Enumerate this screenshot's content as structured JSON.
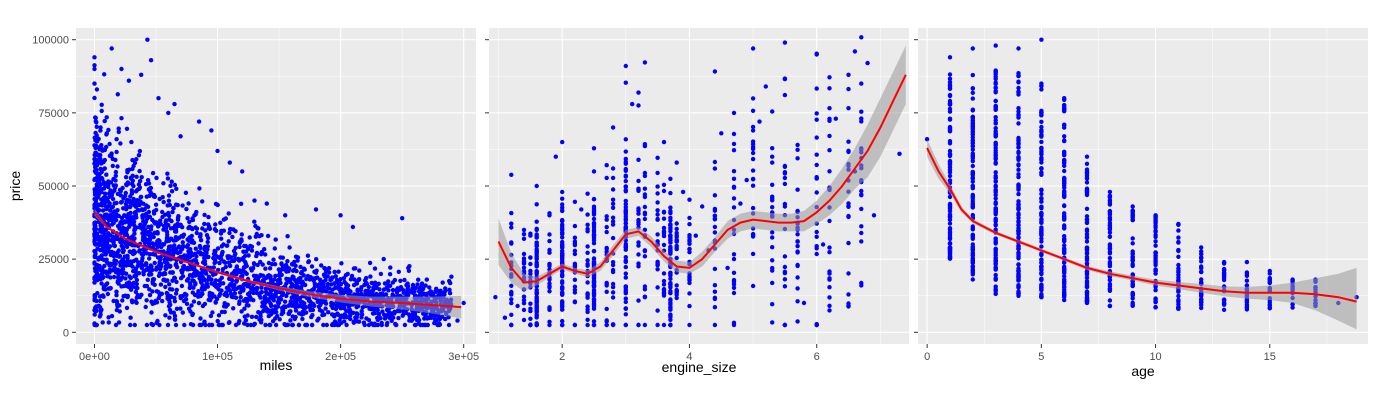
{
  "colors": {
    "panel_bg": "#ebebeb",
    "grid_major": "#ffffff",
    "point": "#0000ff",
    "smooth_line": "#ff0000",
    "ribbon": "#999999",
    "tick_text": "#4d4d4d",
    "axis_text": "#000000"
  },
  "chart_data": [
    {
      "type": "scatter",
      "xlabel": "miles",
      "ylabel": "price",
      "xlim": [
        -15000,
        310000
      ],
      "ylim": [
        -4000,
        104000
      ],
      "x_ticks": [
        0,
        100000,
        200000,
        300000
      ],
      "x_tick_labels": [
        "0e+00",
        "1e+05",
        "2e+05",
        "3e+05"
      ],
      "y_ticks": [
        0,
        25000,
        50000,
        75000,
        100000
      ],
      "y_tick_labels": [
        "0",
        "25000",
        "50000",
        "75000",
        "100000"
      ],
      "show_y_ticks": true,
      "grid": true,
      "smooth": {
        "x": [
          0,
          10000,
          25000,
          50000,
          75000,
          100000,
          125000,
          150000,
          175000,
          200000,
          225000,
          250000,
          275000,
          298000
        ],
        "y": [
          41000,
          36000,
          32000,
          27500,
          24000,
          20500,
          17500,
          15000,
          13000,
          11500,
          10500,
          10000,
          9300,
          8600
        ],
        "se_upper": [
          42200,
          36500,
          32300,
          27800,
          24300,
          20900,
          18000,
          15700,
          14000,
          12800,
          12200,
          12200,
          12200,
          12500
        ],
        "se_lower": [
          39800,
          35500,
          31700,
          27200,
          23700,
          20100,
          17000,
          14300,
          12000,
          10200,
          8800,
          7800,
          6400,
          4700
        ]
      },
      "outliers": [
        [
          0,
          94000
        ],
        [
          0,
          90000
        ],
        [
          0,
          85000
        ],
        [
          2000,
          83000
        ],
        [
          14000,
          97000
        ],
        [
          22000,
          90000
        ],
        [
          28000,
          86000
        ],
        [
          43000,
          100000
        ],
        [
          46000,
          93000
        ],
        [
          38000,
          88000
        ],
        [
          52000,
          80000
        ],
        [
          60000,
          75000
        ],
        [
          65000,
          78000
        ],
        [
          85000,
          72000
        ],
        [
          100000,
          62000
        ],
        [
          110000,
          58000
        ],
        [
          120000,
          55000
        ],
        [
          130000,
          45000
        ],
        [
          140000,
          44000
        ],
        [
          155000,
          40000
        ],
        [
          180000,
          42000
        ],
        [
          200000,
          40000
        ],
        [
          210000,
          36000
        ],
        [
          250000,
          39000
        ],
        [
          235000,
          25000
        ],
        [
          255000,
          22000
        ],
        [
          270000,
          18000
        ],
        [
          290000,
          19000
        ],
        [
          260000,
          14000
        ],
        [
          280000,
          12000
        ],
        [
          275000,
          6000
        ],
        [
          295000,
          4000
        ],
        [
          225000,
          3000
        ],
        [
          240000,
          5000
        ],
        [
          265000,
          8000
        ],
        [
          285000,
          15000
        ],
        [
          300000,
          10000
        ],
        [
          0,
          3000
        ],
        [
          5000,
          70000
        ],
        [
          10000,
          68000
        ],
        [
          18000,
          66000
        ],
        [
          30000,
          65000
        ],
        [
          70000,
          67000
        ],
        [
          95000,
          69000
        ]
      ]
    },
    {
      "type": "scatter",
      "xlabel": "engine_size",
      "ylabel": "",
      "xlim": [
        0.85,
        7.45
      ],
      "ylim": [
        -4000,
        104000
      ],
      "x_ticks": [
        2,
        4,
        6
      ],
      "x_tick_labels": [
        "2",
        "4",
        "6"
      ],
      "y_ticks": [
        0,
        25000,
        50000,
        75000,
        100000
      ],
      "y_tick_labels": [],
      "show_y_ticks": false,
      "grid": true,
      "smooth": {
        "x": [
          1.0,
          1.2,
          1.4,
          1.6,
          1.8,
          2.0,
          2.2,
          2.4,
          2.6,
          2.8,
          3.0,
          3.2,
          3.4,
          3.6,
          3.8,
          4.0,
          4.2,
          4.4,
          4.6,
          4.8,
          5.0,
          5.2,
          5.4,
          5.6,
          5.8,
          6.0,
          6.2,
          6.4,
          6.6,
          6.8,
          7.0,
          7.2,
          7.4
        ],
        "y": [
          31000,
          22000,
          17000,
          17500,
          20000,
          22500,
          21000,
          20000,
          22500,
          28000,
          33500,
          34500,
          31000,
          26000,
          22500,
          22000,
          25000,
          30000,
          35000,
          37500,
          38500,
          38000,
          37500,
          37500,
          38000,
          41000,
          45000,
          50000,
          56000,
          62000,
          70000,
          79000,
          88000
        ],
        "se_upper": [
          39000,
          27000,
          20000,
          19000,
          21200,
          23500,
          22000,
          21200,
          24000,
          29800,
          35000,
          36000,
          32800,
          27800,
          24500,
          24000,
          27500,
          32500,
          38000,
          40500,
          41500,
          41000,
          40500,
          40500,
          41500,
          45000,
          50000,
          56000,
          63000,
          71000,
          80000,
          89000,
          98000
        ],
        "se_lower": [
          23000,
          17000,
          14000,
          16000,
          18800,
          21500,
          20000,
          18800,
          21000,
          26200,
          32000,
          33000,
          29200,
          24200,
          20500,
          20000,
          22500,
          27500,
          32000,
          34500,
          35500,
          35000,
          34500,
          34500,
          34500,
          37000,
          40000,
          44000,
          49000,
          53000,
          60000,
          69000,
          78000
        ]
      },
      "outliers": [
        [
          5.0,
          97000
        ],
        [
          5.5,
          99000
        ],
        [
          3.0,
          91000
        ],
        [
          6.6,
          96000
        ],
        [
          6.8,
          92000
        ],
        [
          6.5,
          88000
        ],
        [
          5.2,
          84000
        ],
        [
          4.7,
          75000
        ],
        [
          6.7,
          85000
        ],
        [
          7.3,
          61000
        ],
        [
          4.5,
          68000
        ],
        [
          5.1,
          72000
        ],
        [
          6.3,
          73000
        ],
        [
          4.8,
          44000
        ],
        [
          4.2,
          43000
        ],
        [
          3.8,
          58000
        ],
        [
          3.6,
          65000
        ],
        [
          2.5,
          55000
        ],
        [
          2.3,
          42000
        ],
        [
          1.8,
          40000
        ],
        [
          1.3,
          9000
        ],
        [
          1.1,
          5000
        ],
        [
          0.95,
          12000
        ],
        [
          4.3,
          28000
        ],
        [
          4.6,
          22000
        ],
        [
          5.7,
          15000
        ],
        [
          6.1,
          30000
        ],
        [
          6.9,
          40000
        ],
        [
          5.8,
          10000
        ],
        [
          3.3,
          12000
        ],
        [
          2.7,
          8000
        ],
        [
          1.6,
          50000
        ],
        [
          1.9,
          60000
        ],
        [
          4.1,
          33000
        ],
        [
          4.9,
          52000
        ],
        [
          6.2,
          18000
        ],
        [
          5.3,
          58000
        ],
        [
          3.9,
          48000
        ],
        [
          2.0,
          65000
        ],
        [
          2.8,
          70000
        ],
        [
          3.1,
          78000
        ],
        [
          6.6,
          55000
        ]
      ]
    },
    {
      "type": "scatter",
      "xlabel": "age",
      "ylabel": "",
      "xlim": [
        -0.4,
        19.3
      ],
      "ylim": [
        -4000,
        104000
      ],
      "x_ticks": [
        0,
        5,
        10,
        15
      ],
      "x_tick_labels": [
        "0",
        "5",
        "10",
        "15"
      ],
      "y_ticks": [
        0,
        25000,
        50000,
        75000,
        100000
      ],
      "y_tick_labels": [],
      "show_y_ticks": false,
      "grid": true,
      "smooth": {
        "x": [
          0,
          0.5,
          1,
          1.5,
          2,
          3,
          4,
          5,
          6,
          7,
          8,
          9,
          10,
          11,
          12,
          13,
          14,
          15,
          16,
          17,
          18,
          18.8
        ],
        "y": [
          63000,
          55000,
          49000,
          42000,
          38000,
          34000,
          31000,
          28000,
          25000,
          22000,
          20000,
          18500,
          17000,
          16000,
          15000,
          14000,
          13500,
          13500,
          13500,
          13000,
          12000,
          10500
        ],
        "se_upper": [
          66000,
          57500,
          50500,
          43000,
          38800,
          34600,
          31600,
          28600,
          25600,
          22700,
          20800,
          19300,
          18000,
          17200,
          16500,
          15700,
          15500,
          16000,
          17000,
          18500,
          20000,
          22000
        ],
        "se_lower": [
          60000,
          52500,
          47500,
          41000,
          37200,
          33400,
          30400,
          27400,
          24400,
          21300,
          19200,
          17700,
          16000,
          14800,
          13500,
          12300,
          11500,
          11000,
          10000,
          7500,
          4000,
          1000
        ]
      },
      "outliers": [
        [
          5,
          100000
        ],
        [
          4,
          97000
        ],
        [
          3,
          98000
        ],
        [
          2,
          97000
        ],
        [
          1,
          94000
        ],
        [
          0,
          66000
        ],
        [
          5,
          85000
        ],
        [
          6,
          80000
        ],
        [
          7,
          60000
        ],
        [
          8,
          48000
        ],
        [
          9,
          43000
        ],
        [
          10,
          40000
        ],
        [
          11,
          37000
        ],
        [
          12,
          29000
        ],
        [
          13,
          24000
        ],
        [
          14,
          24000
        ],
        [
          15,
          21000
        ],
        [
          16,
          18000
        ],
        [
          17,
          18000
        ],
        [
          18.8,
          12000
        ],
        [
          18,
          10000
        ],
        [
          17,
          9000
        ]
      ],
      "columns": [
        {
          "x": 1,
          "ymin": 25000,
          "ymax": 90000
        },
        {
          "x": 2,
          "ymin": 18000,
          "ymax": 88000
        },
        {
          "x": 3,
          "ymin": 13000,
          "ymax": 90000
        },
        {
          "x": 4,
          "ymin": 12000,
          "ymax": 90000
        },
        {
          "x": 5,
          "ymin": 12000,
          "ymax": 85000
        },
        {
          "x": 6,
          "ymin": 11000,
          "ymax": 80000
        },
        {
          "x": 7,
          "ymin": 10000,
          "ymax": 60000
        },
        {
          "x": 8,
          "ymin": 9000,
          "ymax": 48000
        },
        {
          "x": 9,
          "ymin": 9000,
          "ymax": 43000
        },
        {
          "x": 10,
          "ymin": 8500,
          "ymax": 40000
        },
        {
          "x": 11,
          "ymin": 8000,
          "ymax": 37000
        },
        {
          "x": 12,
          "ymin": 8000,
          "ymax": 29000
        },
        {
          "x": 13,
          "ymin": 7500,
          "ymax": 24000
        },
        {
          "x": 14,
          "ymin": 7500,
          "ymax": 22000
        },
        {
          "x": 15,
          "ymin": 8000,
          "ymax": 21000
        },
        {
          "x": 16,
          "ymin": 8000,
          "ymax": 18000
        },
        {
          "x": 17,
          "ymin": 9000,
          "ymax": 18000
        }
      ]
    }
  ]
}
